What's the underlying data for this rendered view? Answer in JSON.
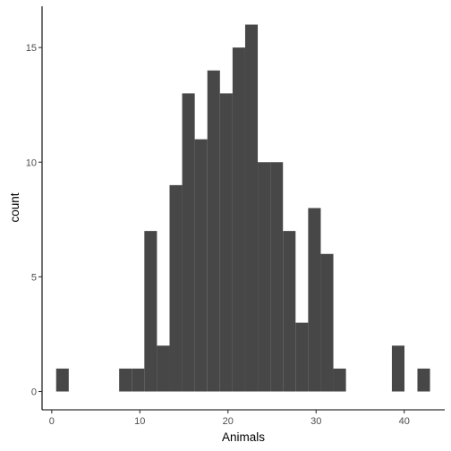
{
  "chart_data": {
    "type": "bar",
    "xlabel": "Animals",
    "ylabel": "count",
    "bar_color": "#474747",
    "background": "#ffffff",
    "grid": false,
    "xlim": [
      -1.1,
      44.6
    ],
    "ylim": [
      -0.8,
      16.8
    ],
    "bin_width": 1.43,
    "x_ticks": [
      0,
      10,
      20,
      30,
      40
    ],
    "y_ticks": [
      0,
      5,
      10,
      15
    ],
    "bins": [
      {
        "start": 0.5,
        "count": 1
      },
      {
        "start": 7.65,
        "count": 1
      },
      {
        "start": 9.08,
        "count": 1
      },
      {
        "start": 10.51,
        "count": 7
      },
      {
        "start": 11.94,
        "count": 2
      },
      {
        "start": 13.37,
        "count": 9
      },
      {
        "start": 14.8,
        "count": 13
      },
      {
        "start": 16.23,
        "count": 11
      },
      {
        "start": 17.66,
        "count": 14
      },
      {
        "start": 19.09,
        "count": 13
      },
      {
        "start": 20.52,
        "count": 15
      },
      {
        "start": 21.95,
        "count": 16
      },
      {
        "start": 23.38,
        "count": 10
      },
      {
        "start": 24.81,
        "count": 10
      },
      {
        "start": 26.24,
        "count": 7
      },
      {
        "start": 27.67,
        "count": 3
      },
      {
        "start": 29.1,
        "count": 8
      },
      {
        "start": 30.53,
        "count": 6
      },
      {
        "start": 31.96,
        "count": 1
      },
      {
        "start": 38.6,
        "count": 2
      },
      {
        "start": 41.5,
        "count": 1
      }
    ]
  }
}
